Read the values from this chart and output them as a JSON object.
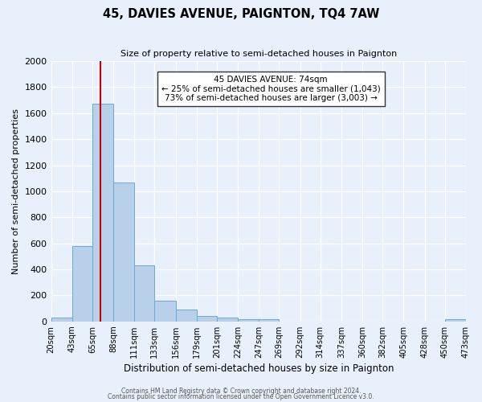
{
  "title": "45, DAVIES AVENUE, PAIGNTON, TQ4 7AW",
  "subtitle": "Size of property relative to semi-detached houses in Paignton",
  "xlabel": "Distribution of semi-detached houses by size in Paignton",
  "ylabel": "Number of semi-detached properties",
  "bar_values": [
    30,
    580,
    1670,
    1070,
    430,
    160,
    90,
    40,
    30,
    20,
    15,
    0,
    0,
    0,
    0,
    0,
    0,
    0,
    0,
    20
  ],
  "bin_edges": [
    20,
    43,
    65,
    88,
    111,
    133,
    156,
    179,
    201,
    224,
    247,
    269,
    292,
    314,
    337,
    360,
    382,
    405,
    428,
    450,
    473
  ],
  "tick_labels": [
    "20sqm",
    "43sqm",
    "65sqm",
    "88sqm",
    "111sqm",
    "133sqm",
    "156sqm",
    "179sqm",
    "201sqm",
    "224sqm",
    "247sqm",
    "269sqm",
    "292sqm",
    "314sqm",
    "337sqm",
    "360sqm",
    "382sqm",
    "405sqm",
    "428sqm",
    "450sqm",
    "473sqm"
  ],
  "property_size": 74,
  "annotation_title": "45 DAVIES AVENUE: 74sqm",
  "annotation_line1": "← 25% of semi-detached houses are smaller (1,043)",
  "annotation_line2": "73% of semi-detached houses are larger (3,003) →",
  "red_line_x": 74,
  "bar_color": "#b8d0ea",
  "bar_edge_color": "#6aaad4",
  "background_color": "#e8f0fb",
  "grid_color": "#ffffff",
  "annotation_box_color": "#ffffff",
  "annotation_box_edge": "#333333",
  "red_line_color": "#cc0000",
  "ylim": [
    0,
    2000
  ],
  "yticks": [
    0,
    200,
    400,
    600,
    800,
    1000,
    1200,
    1400,
    1600,
    1800,
    2000
  ],
  "footer1": "Contains HM Land Registry data © Crown copyright and database right 2024.",
  "footer2": "Contains public sector information licensed under the Open Government Licence v3.0."
}
